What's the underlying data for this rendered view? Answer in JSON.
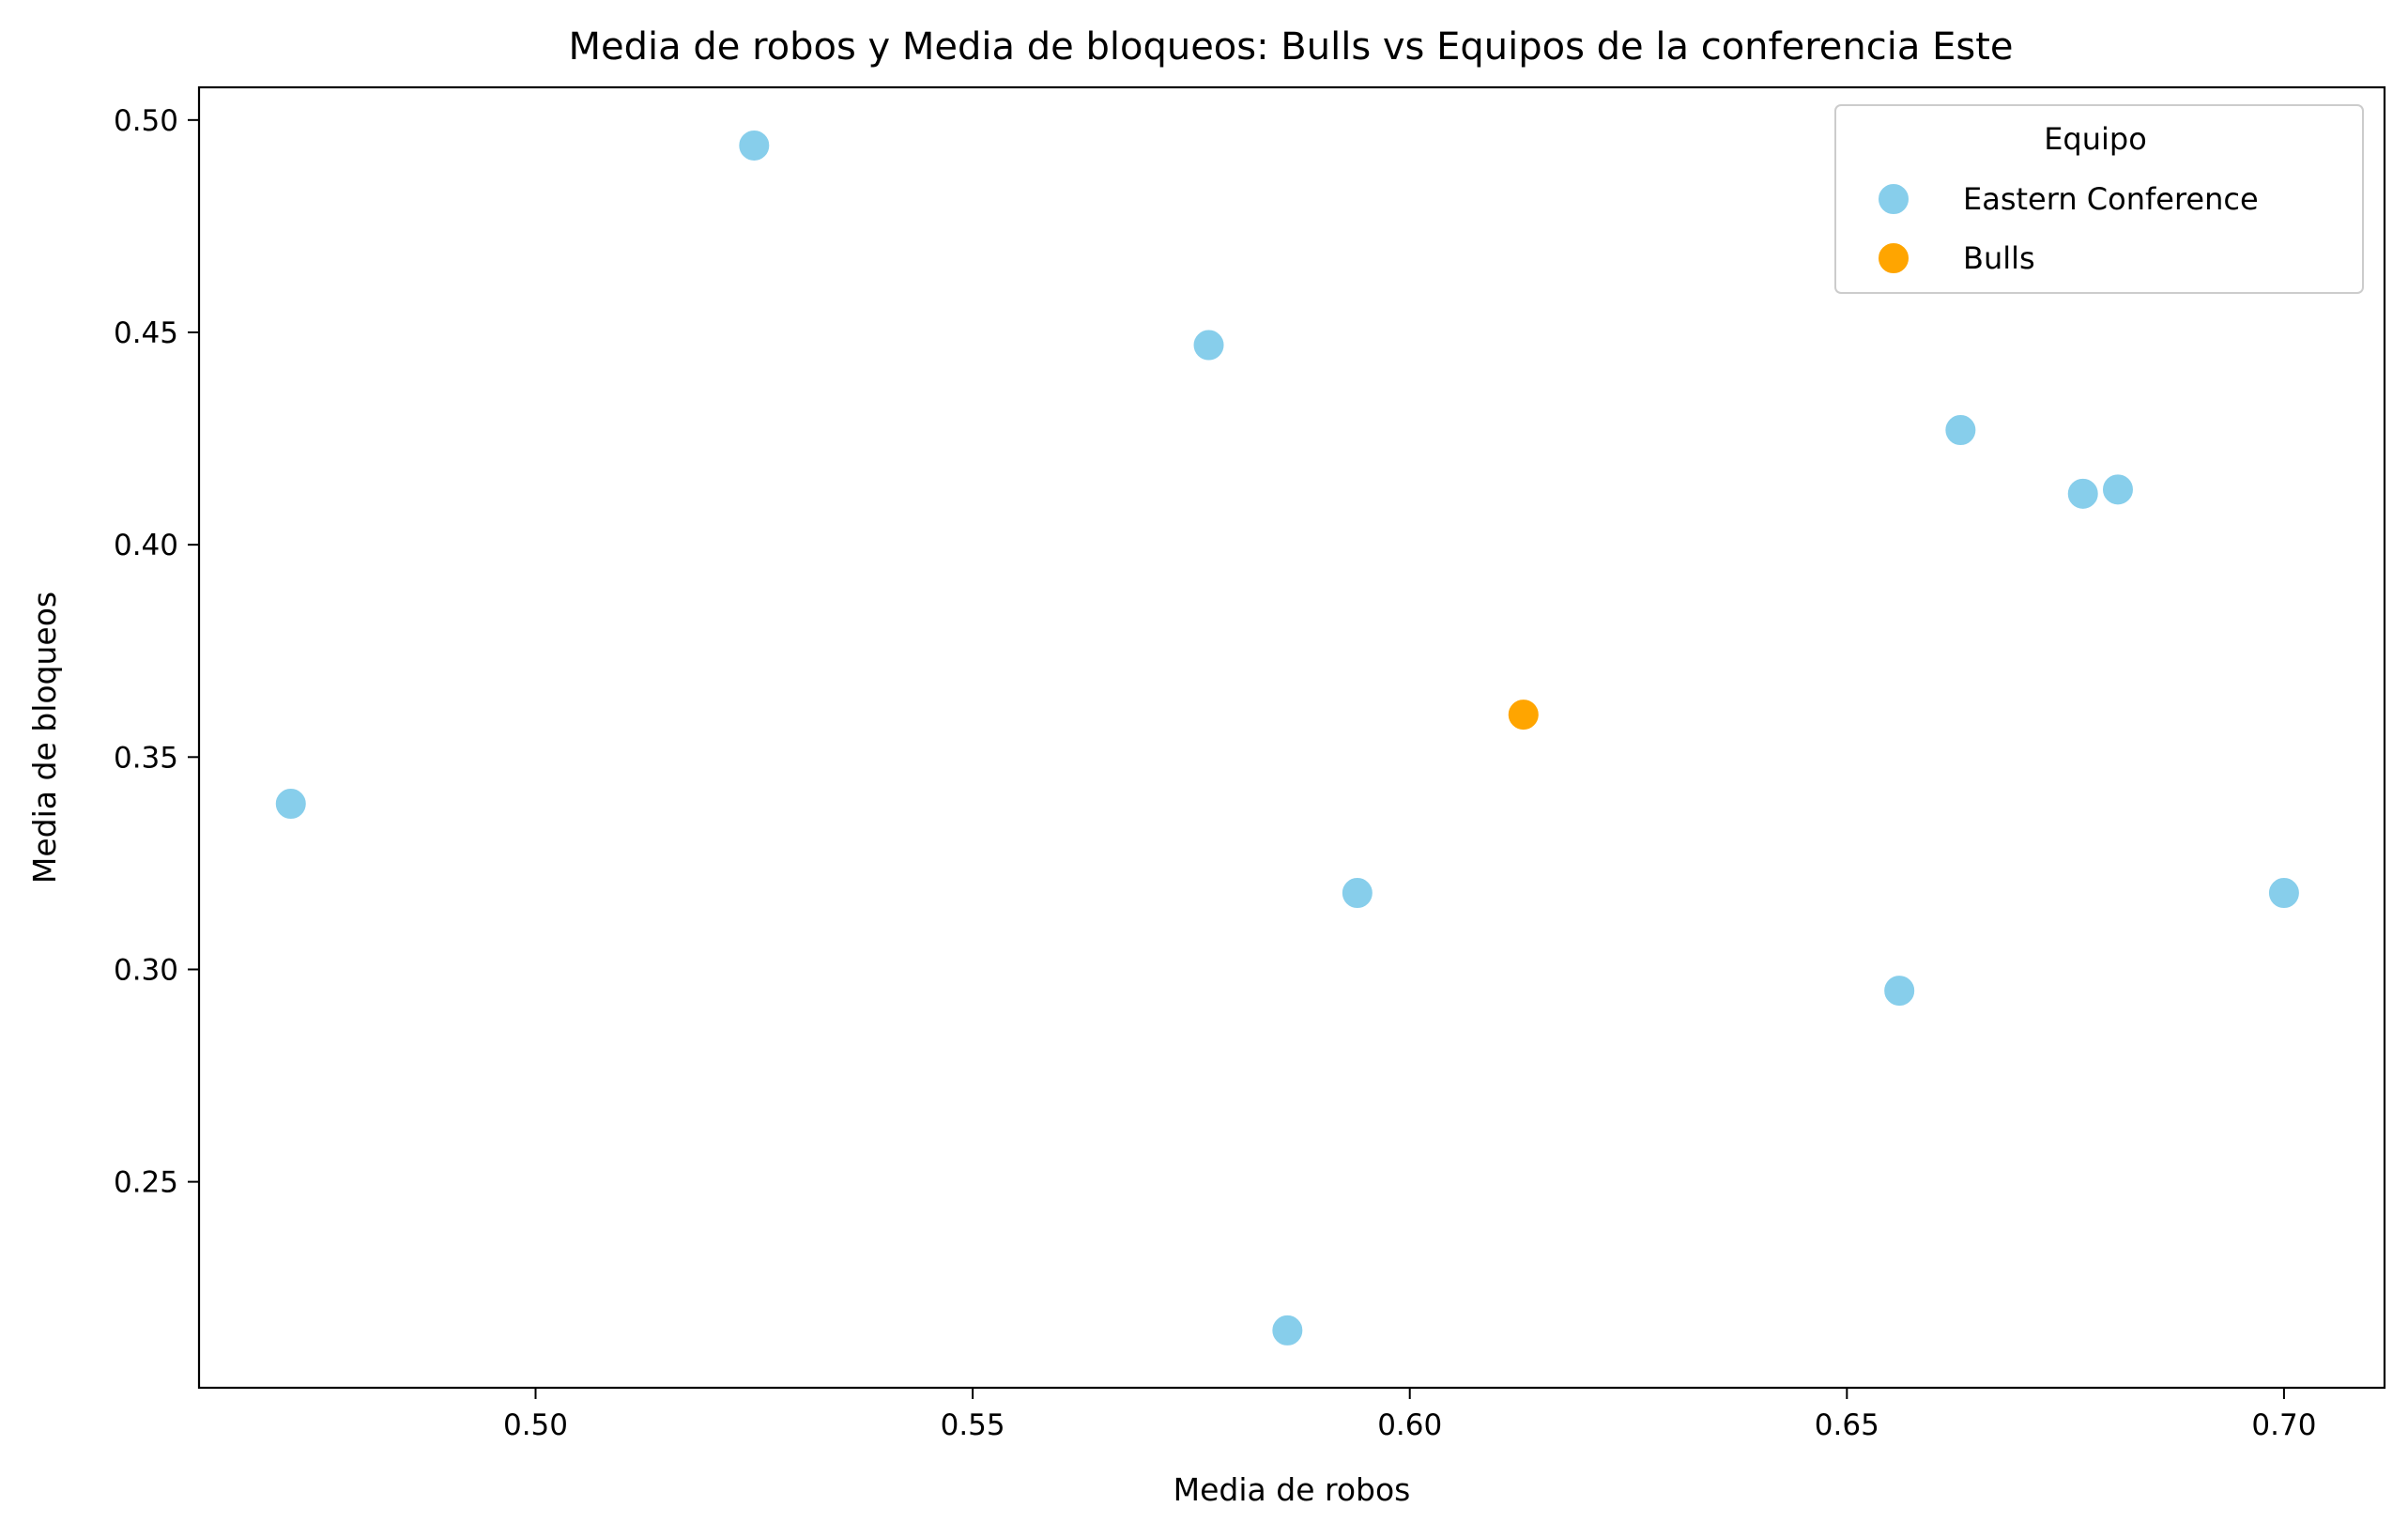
{
  "chart_data": {
    "type": "scatter",
    "title": "Media de robos y Media de bloqueos: Bulls vs Equipos de la conferencia Este",
    "xlabel": "Media de robos",
    "ylabel": "Media de bloqueos",
    "xlim": [
      0.4615,
      0.7115
    ],
    "ylim": [
      0.2015,
      0.5077
    ],
    "x_ticks": [
      0.5,
      0.55,
      0.6,
      0.65,
      0.7
    ],
    "x_tick_labels": [
      "0.50",
      "0.55",
      "0.60",
      "0.65",
      "0.70"
    ],
    "y_ticks": [
      0.25,
      0.3,
      0.35,
      0.4,
      0.45,
      0.5
    ],
    "y_tick_labels": [
      "0.25",
      "0.30",
      "0.35",
      "0.40",
      "0.45",
      "0.50"
    ],
    "grid": false,
    "legend": {
      "title": "Equipo",
      "placement": "top-right"
    },
    "series": [
      {
        "name": "Eastern Conference",
        "color": "#87CEEB",
        "points": [
          {
            "x": 0.472,
            "y": 0.339
          },
          {
            "x": 0.525,
            "y": 0.494
          },
          {
            "x": 0.577,
            "y": 0.447
          },
          {
            "x": 0.586,
            "y": 0.215
          },
          {
            "x": 0.594,
            "y": 0.318
          },
          {
            "x": 0.656,
            "y": 0.295
          },
          {
            "x": 0.663,
            "y": 0.427
          },
          {
            "x": 0.677,
            "y": 0.412
          },
          {
            "x": 0.681,
            "y": 0.413
          },
          {
            "x": 0.7,
            "y": 0.318
          }
        ]
      },
      {
        "name": "Bulls",
        "color": "#FFA500",
        "points": [
          {
            "x": 0.613,
            "y": 0.36
          }
        ]
      }
    ]
  }
}
